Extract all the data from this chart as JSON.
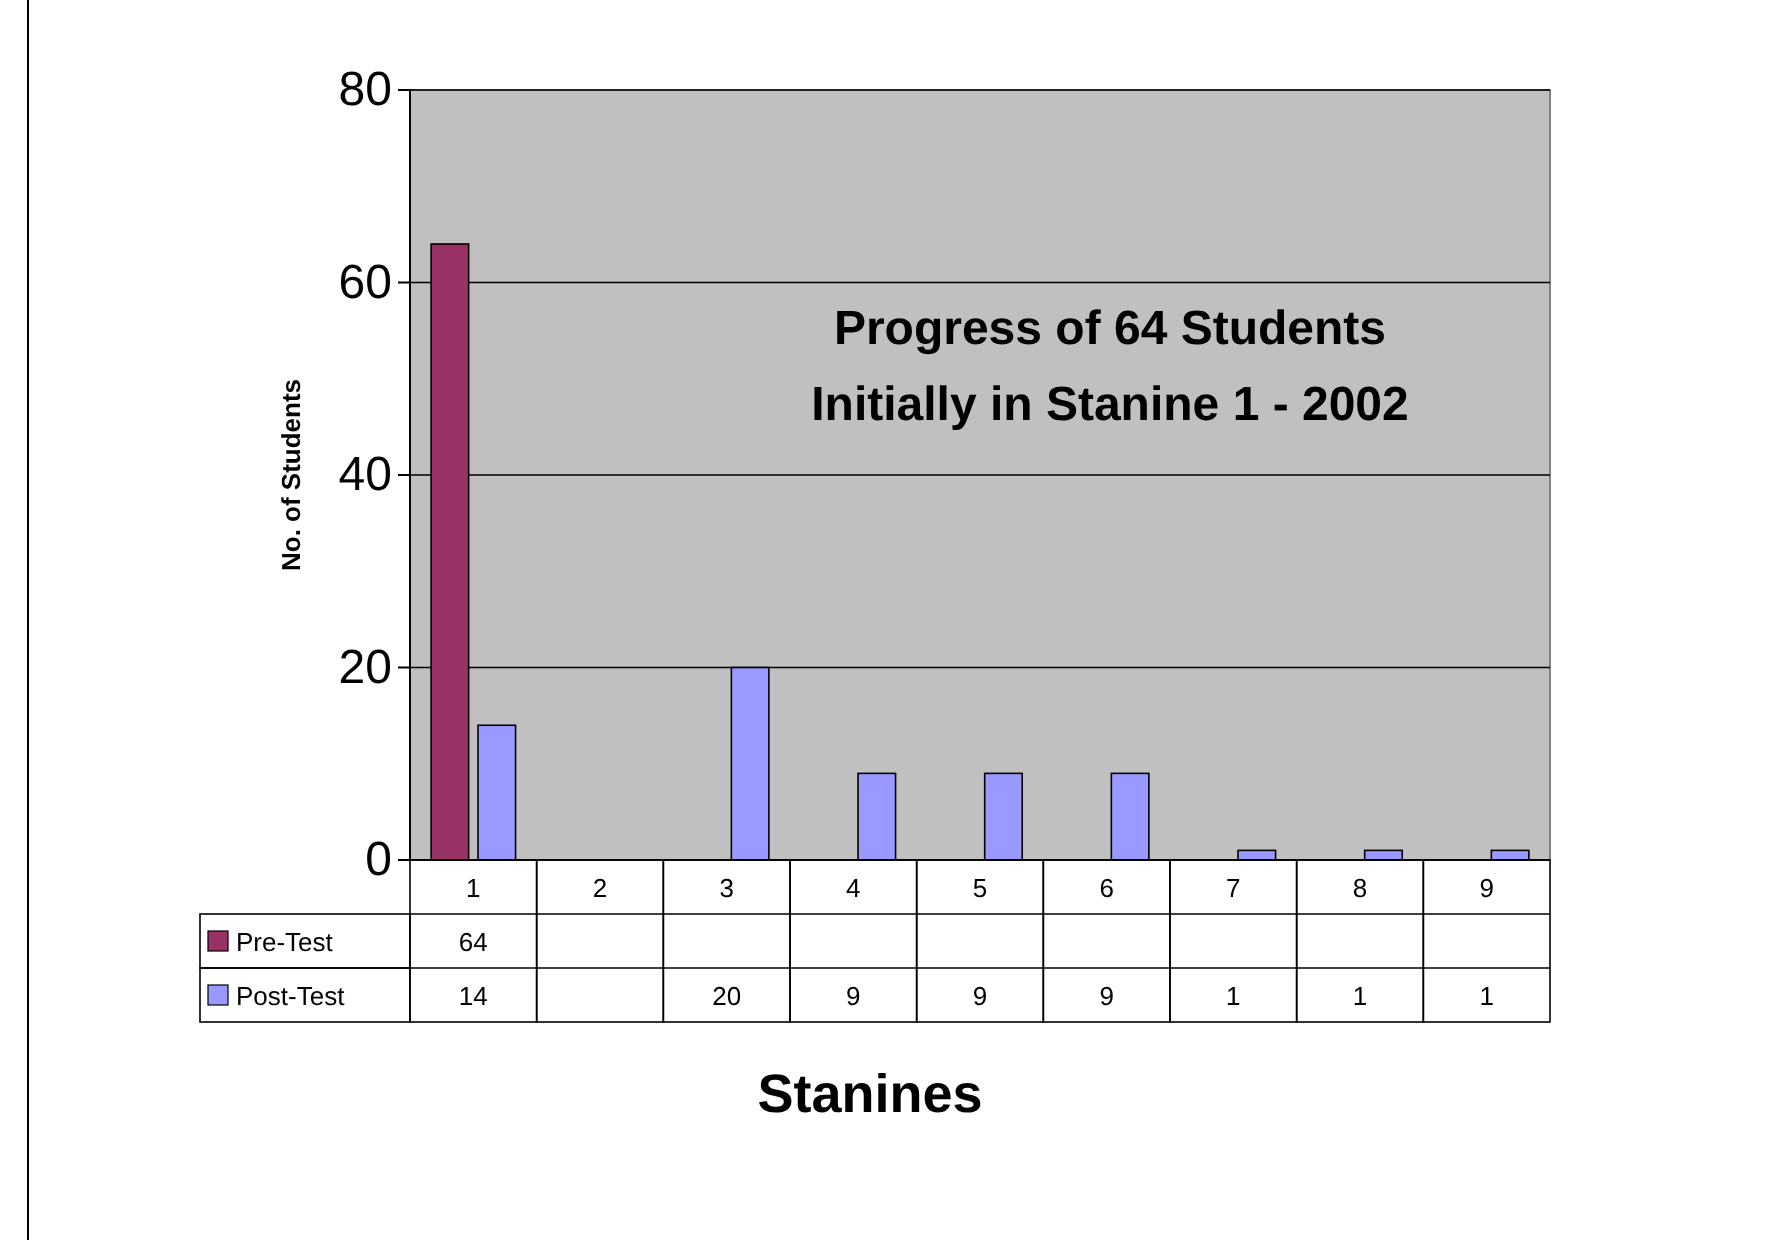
{
  "chart_data": {
    "type": "bar",
    "title": "Progress of 64 Students Initially in Stanine 1 - 2002",
    "xlabel": "Stanines",
    "ylabel": "No. of Students",
    "categories": [
      "1",
      "2",
      "3",
      "4",
      "5",
      "6",
      "7",
      "8",
      "9"
    ],
    "series": [
      {
        "name": "Pre-Test",
        "color": "#993366",
        "values": [
          64,
          null,
          null,
          null,
          null,
          null,
          null,
          null,
          null
        ]
      },
      {
        "name": "Post-Test",
        "color": "#9999ff",
        "values": [
          14,
          null,
          20,
          9,
          9,
          9,
          1,
          1,
          1
        ]
      }
    ],
    "ylim": [
      0,
      80
    ],
    "yticks": [
      0,
      20,
      40,
      60,
      80
    ],
    "grid": "y",
    "legend": "bottom",
    "data_labels": true
  }
}
